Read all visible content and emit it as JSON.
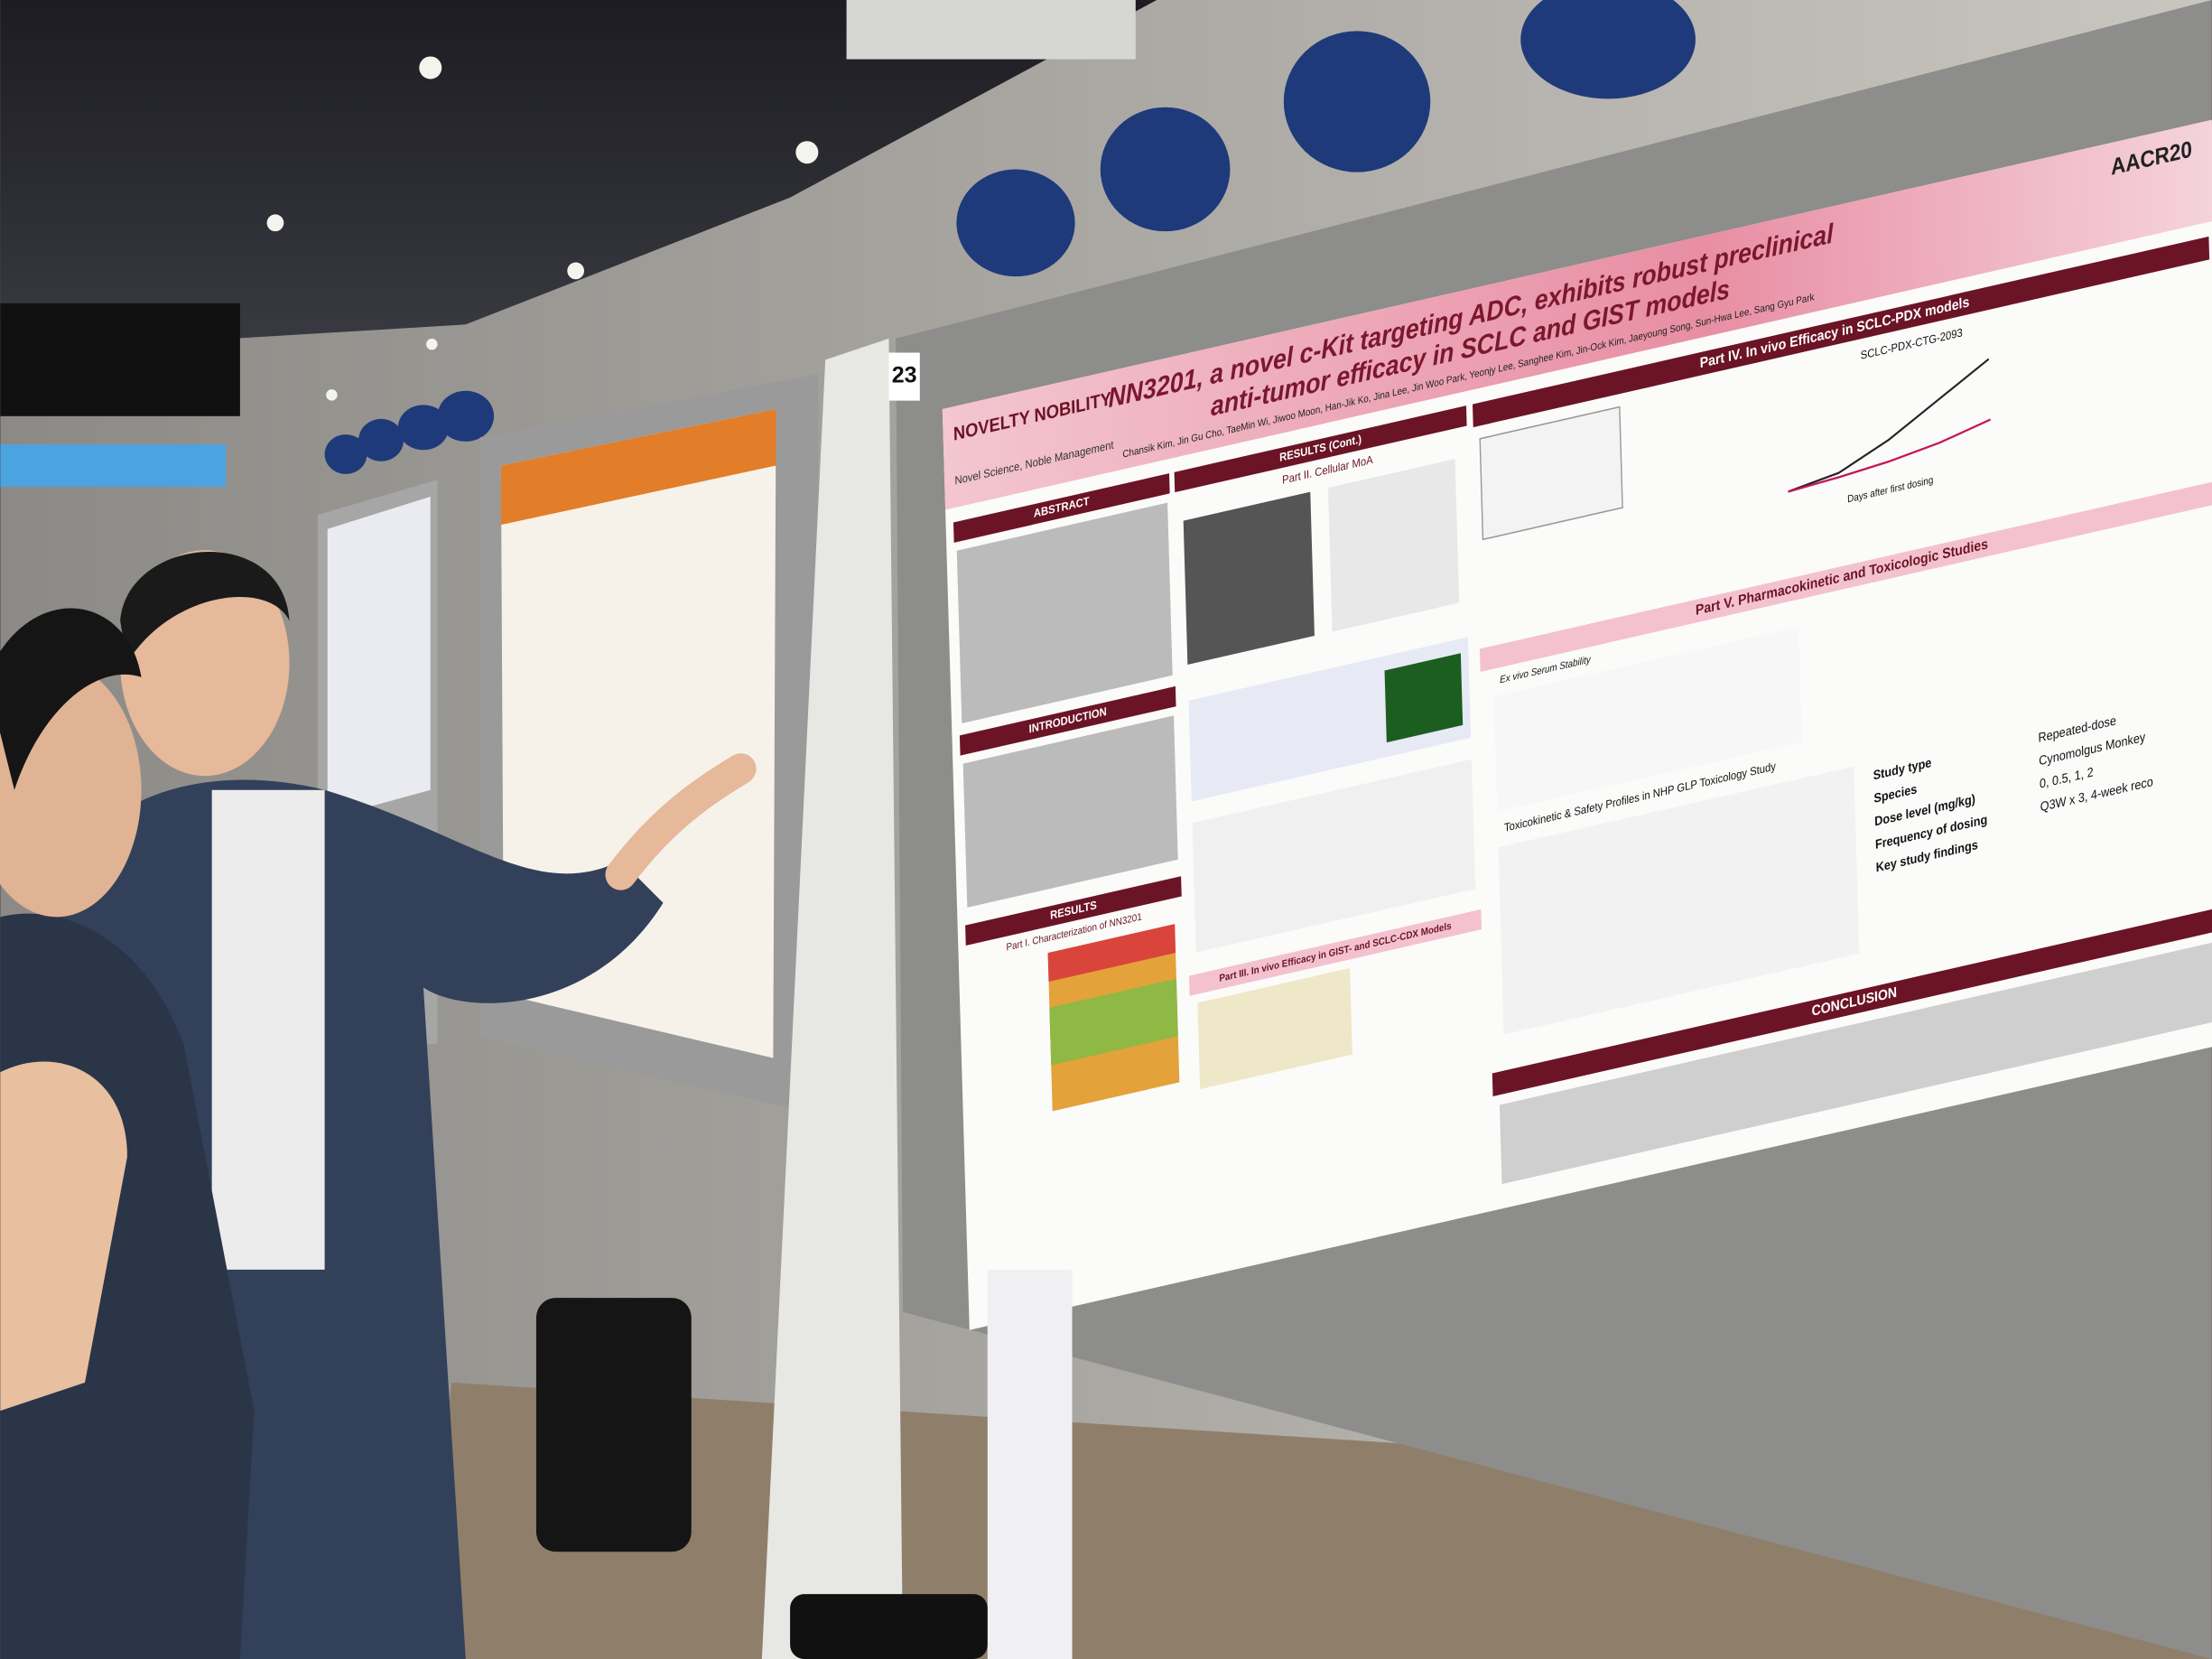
{
  "poster": {
    "board_number": "23",
    "conference": "AACR20",
    "logo": "NOVELTY NOBILITY",
    "tagline": "Novel Science, Noble Management",
    "title_line1": "NN3201, a novel c-Kit targeting ADC, exhibits robust preclinical",
    "title_line2": "anti-tumor efficacy in SCLC and GIST models",
    "authors": "Chansik Kim, Jin Gu Cho, TaeMin Wi, Jiwoo Moon, Han-Jik Ko, Jina Lee, Jin Woo Park, Yeonjy Lee, Sanghee Kim, Jin-Ock Kim, Jaeyoung Song, Sun-Hwa Lee, Sang Gyu Park",
    "sections": {
      "abstract": "ABSTRACT",
      "introduction": "INTRODUCTION",
      "results": "RESULTS",
      "part1": "Part I. Characterization of NN3201",
      "results_cont": "RESULTS (Cont.)",
      "part2": "Part II. Cellular MoA",
      "part3": "Part III. In vivo Efficacy in GIST- and SCLC-CDX Models",
      "part4": "Part IV. In vivo Efficacy in SCLC-PDX models",
      "part5": "Part V. Pharmacokinetic and Toxicologic Studies",
      "serum": "Ex vivo Serum Stability",
      "tox": "Toxicokinetic & Safety Profiles in NHP GLP Toxicology Study",
      "conclusion": "CONCLUSION"
    },
    "pdx_chart_title": "SCLC-PDX-CTG-2093",
    "pdx_xlabel": "Days after first dosing",
    "study_table": [
      [
        "Study type",
        "Repeated-dose"
      ],
      [
        "Species",
        "Cynomolgus Monkey"
      ],
      [
        "Dose level (mg/kg)",
        "0, 0.5, 1, 2"
      ],
      [
        "Frequency of dosing",
        "Q3W x 3, 4-week reco"
      ],
      [
        "Key study findings",
        ""
      ]
    ]
  }
}
